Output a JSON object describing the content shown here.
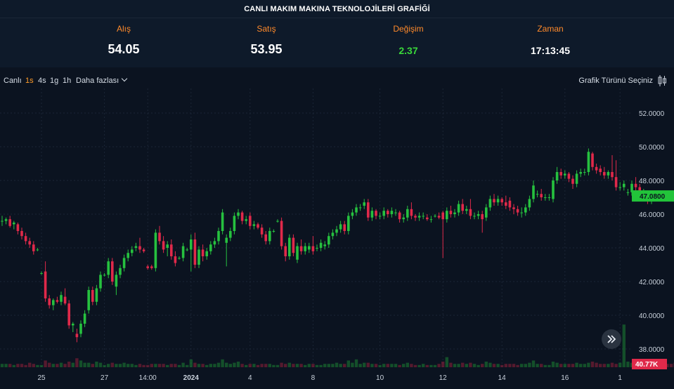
{
  "title": "CANLI MAKIM MAKINA TEKNOLOJİLERİ GRAFİĞİ",
  "stats": {
    "bid_label": "Alış",
    "bid_value": "54.05",
    "ask_label": "Satış",
    "ask_value": "53.95",
    "change_label": "Değişim",
    "change_value": "2.37",
    "time_label": "Zaman",
    "time_value": "17:13:45"
  },
  "toolbar": {
    "live": "Canlı",
    "tf_1s": "1s",
    "tf_4s": "4s",
    "tf_1g": "1g",
    "tf_1h": "1h",
    "more": "Daha fazlası",
    "chart_type": "Grafik Türünü Seçiniz"
  },
  "colors": {
    "up": "#26c13f",
    "down": "#e0294a",
    "accent": "#ff9c29",
    "bg": "#0b1320"
  },
  "chart_data": {
    "type": "candlestick",
    "title": "",
    "xlabel": "",
    "ylabel": "",
    "ylim": [
      37.0,
      53.0
    ],
    "y_ticks": [
      "52.0000",
      "50.0000",
      "48.0000",
      "46.0000",
      "44.0000",
      "42.0000",
      "40.0000",
      "38.0000"
    ],
    "x_tick_labels": [
      "25",
      "27",
      "14:00",
      "2024",
      "4",
      "8",
      "10",
      "12",
      "14",
      "16",
      "1"
    ],
    "x_tick_index": [
      10,
      26,
      37,
      48,
      63,
      79,
      96,
      112,
      127,
      143,
      157
    ],
    "last_price": "47.0800",
    "last_volume": "40.77K",
    "grid": true,
    "candles": [
      {
        "o": 45.6,
        "h": 45.9,
        "l": 45.3,
        "c": 45.6
      },
      {
        "o": 45.6,
        "h": 45.8,
        "l": 45.4,
        "c": 45.7
      },
      {
        "o": 45.7,
        "h": 45.9,
        "l": 45.2,
        "c": 45.3
      },
      {
        "o": 45.4,
        "h": 45.6,
        "l": 45.1,
        "c": 45.5
      },
      {
        "o": 45.4,
        "h": 45.5,
        "l": 44.8,
        "c": 45.0
      },
      {
        "o": 45.0,
        "h": 45.2,
        "l": 44.5,
        "c": 44.7
      },
      {
        "o": 44.7,
        "h": 44.9,
        "l": 44.2,
        "c": 44.4
      },
      {
        "o": 44.4,
        "h": 44.6,
        "l": 44.0,
        "c": 44.2
      },
      {
        "o": 44.2,
        "h": 44.4,
        "l": 43.6,
        "c": 43.8
      },
      {
        "o": 43.9,
        "h": 44.0,
        "l": 43.8,
        "c": 43.9
      },
      {
        "o": 42.5,
        "h": 42.6,
        "l": 42.4,
        "c": 42.5
      },
      {
        "o": 42.6,
        "h": 43.2,
        "l": 40.8,
        "c": 41.0
      },
      {
        "o": 41.0,
        "h": 41.2,
        "l": 40.4,
        "c": 40.6
      },
      {
        "o": 40.6,
        "h": 41.0,
        "l": 40.3,
        "c": 40.9
      },
      {
        "o": 40.9,
        "h": 41.1,
        "l": 40.7,
        "c": 40.8
      },
      {
        "o": 40.8,
        "h": 41.4,
        "l": 40.6,
        "c": 41.2
      },
      {
        "o": 41.1,
        "h": 41.6,
        "l": 40.6,
        "c": 40.7
      },
      {
        "o": 40.7,
        "h": 40.9,
        "l": 39.2,
        "c": 39.4
      },
      {
        "o": 39.4,
        "h": 39.6,
        "l": 39.0,
        "c": 39.5
      },
      {
        "o": 38.9,
        "h": 39.2,
        "l": 38.4,
        "c": 38.7
      },
      {
        "o": 38.9,
        "h": 39.7,
        "l": 38.7,
        "c": 39.5
      },
      {
        "o": 39.5,
        "h": 40.3,
        "l": 39.3,
        "c": 40.1
      },
      {
        "o": 40.3,
        "h": 41.7,
        "l": 40.1,
        "c": 41.5
      },
      {
        "o": 41.5,
        "h": 41.7,
        "l": 40.6,
        "c": 40.8
      },
      {
        "o": 40.8,
        "h": 41.8,
        "l": 40.6,
        "c": 41.6
      },
      {
        "o": 41.6,
        "h": 42.6,
        "l": 41.4,
        "c": 42.4
      },
      {
        "o": 42.4,
        "h": 42.5,
        "l": 42.3,
        "c": 42.4
      },
      {
        "o": 42.4,
        "h": 43.4,
        "l": 42.2,
        "c": 43.2
      },
      {
        "o": 43.2,
        "h": 43.4,
        "l": 41.8,
        "c": 42.0
      },
      {
        "o": 41.7,
        "h": 42.6,
        "l": 41.2,
        "c": 42.4
      },
      {
        "o": 42.4,
        "h": 43.0,
        "l": 42.2,
        "c": 42.8
      },
      {
        "o": 42.8,
        "h": 43.6,
        "l": 42.6,
        "c": 43.4
      },
      {
        "o": 43.4,
        "h": 43.9,
        "l": 43.2,
        "c": 43.7
      },
      {
        "o": 43.7,
        "h": 44.1,
        "l": 43.5,
        "c": 43.9
      },
      {
        "o": 44.0,
        "h": 44.3,
        "l": 43.8,
        "c": 44.1
      },
      {
        "o": 44.1,
        "h": 44.6,
        "l": 43.7,
        "c": 43.9
      },
      {
        "o": 43.9,
        "h": 44.0,
        "l": 43.7,
        "c": 43.8
      },
      {
        "o": 42.9,
        "h": 43.0,
        "l": 42.7,
        "c": 42.8
      },
      {
        "o": 42.9,
        "h": 43.0,
        "l": 42.7,
        "c": 42.8
      },
      {
        "o": 42.8,
        "h": 45.1,
        "l": 42.6,
        "c": 44.9
      },
      {
        "o": 44.9,
        "h": 45.3,
        "l": 44.2,
        "c": 44.4
      },
      {
        "o": 44.4,
        "h": 44.7,
        "l": 43.7,
        "c": 43.9
      },
      {
        "o": 44.0,
        "h": 44.4,
        "l": 43.5,
        "c": 44.2
      },
      {
        "o": 44.2,
        "h": 44.5,
        "l": 43.3,
        "c": 43.5
      },
      {
        "o": 43.5,
        "h": 43.8,
        "l": 42.9,
        "c": 43.1
      },
      {
        "o": 43.4,
        "h": 43.5,
        "l": 43.3,
        "c": 43.4
      },
      {
        "o": 43.4,
        "h": 44.3,
        "l": 43.2,
        "c": 44.1
      },
      {
        "o": 43.9,
        "h": 44.0,
        "l": 43.8,
        "c": 43.9
      },
      {
        "o": 43.9,
        "h": 44.8,
        "l": 42.6,
        "c": 44.5
      },
      {
        "o": 44.5,
        "h": 44.9,
        "l": 42.8,
        "c": 43.0
      },
      {
        "o": 43.0,
        "h": 44.1,
        "l": 42.8,
        "c": 43.9
      },
      {
        "o": 43.9,
        "h": 44.2,
        "l": 43.2,
        "c": 43.5
      },
      {
        "o": 43.5,
        "h": 44.0,
        "l": 43.3,
        "c": 43.8
      },
      {
        "o": 43.8,
        "h": 44.4,
        "l": 43.6,
        "c": 44.2
      },
      {
        "o": 44.2,
        "h": 44.6,
        "l": 44.0,
        "c": 44.4
      },
      {
        "o": 44.4,
        "h": 45.2,
        "l": 44.2,
        "c": 45.0
      },
      {
        "o": 45.0,
        "h": 46.3,
        "l": 44.8,
        "c": 46.1
      },
      {
        "o": 44.3,
        "h": 44.8,
        "l": 42.9,
        "c": 44.6
      },
      {
        "o": 44.6,
        "h": 45.2,
        "l": 44.4,
        "c": 45.0
      },
      {
        "o": 45.0,
        "h": 46.1,
        "l": 44.8,
        "c": 45.9
      },
      {
        "o": 45.9,
        "h": 46.3,
        "l": 45.7,
        "c": 46.1
      },
      {
        "o": 46.1,
        "h": 46.2,
        "l": 45.4,
        "c": 45.6
      },
      {
        "o": 45.6,
        "h": 45.9,
        "l": 45.4,
        "c": 45.7
      },
      {
        "o": 45.9,
        "h": 46.1,
        "l": 45.1,
        "c": 45.3
      },
      {
        "o": 45.3,
        "h": 45.6,
        "l": 45.1,
        "c": 45.4
      },
      {
        "o": 45.4,
        "h": 45.5,
        "l": 45.1,
        "c": 45.2
      },
      {
        "o": 45.2,
        "h": 45.4,
        "l": 44.6,
        "c": 44.8
      },
      {
        "o": 44.8,
        "h": 45.0,
        "l": 44.2,
        "c": 44.4
      },
      {
        "o": 44.4,
        "h": 45.2,
        "l": 44.2,
        "c": 45.0
      },
      {
        "o": 45.0,
        "h": 45.1,
        "l": 44.9,
        "c": 45.0
      },
      {
        "o": 45.6,
        "h": 45.7,
        "l": 45.5,
        "c": 45.6
      },
      {
        "o": 45.6,
        "h": 45.8,
        "l": 43.9,
        "c": 44.1
      },
      {
        "o": 44.1,
        "h": 44.3,
        "l": 43.2,
        "c": 43.5
      },
      {
        "o": 43.5,
        "h": 44.8,
        "l": 43.3,
        "c": 44.6
      },
      {
        "o": 44.6,
        "h": 44.8,
        "l": 43.5,
        "c": 43.7
      },
      {
        "o": 43.3,
        "h": 44.3,
        "l": 43.1,
        "c": 44.1
      },
      {
        "o": 44.1,
        "h": 44.5,
        "l": 43.6,
        "c": 43.8
      },
      {
        "o": 43.8,
        "h": 44.3,
        "l": 43.6,
        "c": 44.1
      },
      {
        "o": 43.9,
        "h": 44.3,
        "l": 43.7,
        "c": 44.1
      },
      {
        "o": 44.1,
        "h": 44.7,
        "l": 43.6,
        "c": 43.8
      },
      {
        "o": 44.0,
        "h": 44.2,
        "l": 43.8,
        "c": 44.0
      },
      {
        "o": 44.0,
        "h": 44.5,
        "l": 43.8,
        "c": 44.3
      },
      {
        "o": 44.1,
        "h": 44.4,
        "l": 43.9,
        "c": 44.2
      },
      {
        "o": 44.2,
        "h": 44.9,
        "l": 44.0,
        "c": 44.7
      },
      {
        "o": 44.7,
        "h": 45.1,
        "l": 44.5,
        "c": 44.9
      },
      {
        "o": 44.9,
        "h": 45.3,
        "l": 44.7,
        "c": 45.1
      },
      {
        "o": 45.1,
        "h": 45.6,
        "l": 44.9,
        "c": 45.4
      },
      {
        "o": 45.4,
        "h": 45.6,
        "l": 44.8,
        "c": 45.0
      },
      {
        "o": 45.0,
        "h": 46.1,
        "l": 44.8,
        "c": 45.9
      },
      {
        "o": 45.9,
        "h": 46.3,
        "l": 45.7,
        "c": 46.1
      },
      {
        "o": 46.1,
        "h": 46.6,
        "l": 45.9,
        "c": 46.4
      },
      {
        "o": 46.4,
        "h": 46.6,
        "l": 46.2,
        "c": 46.4
      },
      {
        "o": 46.5,
        "h": 46.9,
        "l": 46.3,
        "c": 46.7
      },
      {
        "o": 46.7,
        "h": 46.9,
        "l": 45.6,
        "c": 45.8
      },
      {
        "o": 45.8,
        "h": 46.4,
        "l": 45.6,
        "c": 46.2
      },
      {
        "o": 46.2,
        "h": 46.3,
        "l": 45.7,
        "c": 45.9
      },
      {
        "o": 45.9,
        "h": 46.1,
        "l": 45.7,
        "c": 45.9
      },
      {
        "o": 45.9,
        "h": 46.4,
        "l": 45.7,
        "c": 46.2
      },
      {
        "o": 46.2,
        "h": 46.3,
        "l": 45.8,
        "c": 46.0
      },
      {
        "o": 46.0,
        "h": 46.4,
        "l": 45.8,
        "c": 46.2
      },
      {
        "o": 46.1,
        "h": 46.3,
        "l": 45.9,
        "c": 46.1
      },
      {
        "o": 46.1,
        "h": 46.2,
        "l": 45.5,
        "c": 45.7
      },
      {
        "o": 45.7,
        "h": 46.0,
        "l": 45.5,
        "c": 45.8
      },
      {
        "o": 45.8,
        "h": 46.5,
        "l": 45.6,
        "c": 46.3
      },
      {
        "o": 46.3,
        "h": 46.7,
        "l": 45.7,
        "c": 45.9
      },
      {
        "o": 45.9,
        "h": 46.0,
        "l": 45.6,
        "c": 45.8
      },
      {
        "o": 45.8,
        "h": 46.1,
        "l": 45.6,
        "c": 45.9
      },
      {
        "o": 45.9,
        "h": 46.1,
        "l": 45.7,
        "c": 45.9
      },
      {
        "o": 45.8,
        "h": 46.0,
        "l": 45.6,
        "c": 45.7
      },
      {
        "o": 45.7,
        "h": 45.9,
        "l": 45.5,
        "c": 45.7
      },
      {
        "o": 45.9,
        "h": 46.0,
        "l": 45.8,
        "c": 45.9
      },
      {
        "o": 45.9,
        "h": 46.1,
        "l": 45.7,
        "c": 45.8
      },
      {
        "o": 46.1,
        "h": 46.2,
        "l": 43.4,
        "c": 45.7
      },
      {
        "o": 45.7,
        "h": 46.4,
        "l": 45.5,
        "c": 46.2
      },
      {
        "o": 46.2,
        "h": 46.5,
        "l": 45.8,
        "c": 46.0
      },
      {
        "o": 46.0,
        "h": 46.3,
        "l": 45.8,
        "c": 46.1
      },
      {
        "o": 46.1,
        "h": 46.8,
        "l": 45.9,
        "c": 46.6
      },
      {
        "o": 46.6,
        "h": 46.9,
        "l": 46.0,
        "c": 46.2
      },
      {
        "o": 46.2,
        "h": 46.5,
        "l": 46.0,
        "c": 46.3
      },
      {
        "o": 46.3,
        "h": 46.9,
        "l": 45.7,
        "c": 45.9
      },
      {
        "o": 45.9,
        "h": 46.1,
        "l": 45.7,
        "c": 45.9
      },
      {
        "o": 45.9,
        "h": 46.2,
        "l": 45.7,
        "c": 46.0
      },
      {
        "o": 46.0,
        "h": 46.2,
        "l": 44.9,
        "c": 45.7
      },
      {
        "o": 45.8,
        "h": 46.6,
        "l": 45.6,
        "c": 46.4
      },
      {
        "o": 46.4,
        "h": 47.1,
        "l": 46.2,
        "c": 46.9
      },
      {
        "o": 46.9,
        "h": 47.2,
        "l": 46.5,
        "c": 46.7
      },
      {
        "o": 46.7,
        "h": 47.1,
        "l": 46.5,
        "c": 46.9
      },
      {
        "o": 46.9,
        "h": 47.0,
        "l": 46.5,
        "c": 46.7
      },
      {
        "o": 46.7,
        "h": 47.1,
        "l": 46.3,
        "c": 46.5
      },
      {
        "o": 46.8,
        "h": 47.0,
        "l": 46.2,
        "c": 46.4
      },
      {
        "o": 46.4,
        "h": 46.6,
        "l": 46.0,
        "c": 46.3
      },
      {
        "o": 46.3,
        "h": 46.5,
        "l": 45.9,
        "c": 46.1
      },
      {
        "o": 46.1,
        "h": 46.4,
        "l": 45.8,
        "c": 46.1
      },
      {
        "o": 46.1,
        "h": 46.6,
        "l": 45.9,
        "c": 46.4
      },
      {
        "o": 46.4,
        "h": 47.1,
        "l": 46.2,
        "c": 46.9
      },
      {
        "o": 46.9,
        "h": 48.0,
        "l": 46.7,
        "c": 47.7
      },
      {
        "o": 47.2,
        "h": 47.4,
        "l": 47.0,
        "c": 47.2
      },
      {
        "o": 47.2,
        "h": 47.5,
        "l": 46.8,
        "c": 47.0
      },
      {
        "o": 47.0,
        "h": 47.2,
        "l": 46.8,
        "c": 47.0
      },
      {
        "o": 47.0,
        "h": 47.2,
        "l": 46.8,
        "c": 47.0
      },
      {
        "o": 46.9,
        "h": 48.2,
        "l": 46.7,
        "c": 48.0
      },
      {
        "o": 48.0,
        "h": 48.8,
        "l": 47.8,
        "c": 48.5
      },
      {
        "o": 48.5,
        "h": 48.7,
        "l": 48.1,
        "c": 48.3
      },
      {
        "o": 48.3,
        "h": 48.6,
        "l": 48.1,
        "c": 48.4
      },
      {
        "o": 48.4,
        "h": 48.5,
        "l": 47.9,
        "c": 48.1
      },
      {
        "o": 48.1,
        "h": 48.3,
        "l": 47.5,
        "c": 47.8
      },
      {
        "o": 47.8,
        "h": 48.6,
        "l": 47.6,
        "c": 48.4
      },
      {
        "o": 48.4,
        "h": 48.7,
        "l": 48.2,
        "c": 48.5
      },
      {
        "o": 48.5,
        "h": 48.7,
        "l": 48.3,
        "c": 48.5
      },
      {
        "o": 48.5,
        "h": 49.9,
        "l": 48.3,
        "c": 49.7
      },
      {
        "o": 49.6,
        "h": 49.7,
        "l": 48.6,
        "c": 48.8
      },
      {
        "o": 48.8,
        "h": 49.0,
        "l": 48.4,
        "c": 48.6
      },
      {
        "o": 48.7,
        "h": 48.9,
        "l": 48.3,
        "c": 48.5
      },
      {
        "o": 48.5,
        "h": 48.8,
        "l": 48.1,
        "c": 48.3
      },
      {
        "o": 48.3,
        "h": 48.6,
        "l": 48.1,
        "c": 48.5
      },
      {
        "o": 48.5,
        "h": 49.5,
        "l": 48.0,
        "c": 48.2
      },
      {
        "o": 48.2,
        "h": 49.2,
        "l": 47.4,
        "c": 47.6
      },
      {
        "o": 47.6,
        "h": 47.9,
        "l": 47.4,
        "c": 47.6
      },
      {
        "o": 47.6,
        "h": 48.0,
        "l": 47.4,
        "c": 47.8
      },
      {
        "o": 47.3,
        "h": 47.5,
        "l": 47.1,
        "c": 47.3
      },
      {
        "o": 47.3,
        "h": 48.0,
        "l": 47.1,
        "c": 47.8
      },
      {
        "o": 47.8,
        "h": 48.2,
        "l": 47.4,
        "c": 47.6
      },
      {
        "o": 47.6,
        "h": 47.8,
        "l": 47.1,
        "c": 47.3
      },
      {
        "o": 47.3,
        "h": 47.5,
        "l": 47.1,
        "c": 47.3
      },
      {
        "o": 47.3,
        "h": 47.4,
        "l": 46.6,
        "c": 46.8
      },
      {
        "o": 46.8,
        "h": 47.2,
        "l": 46.6,
        "c": 47.1
      }
    ],
    "volume": [
      0.03,
      0.03,
      0.03,
      0.02,
      0.03,
      0.03,
      0.02,
      0.04,
      0.03,
      0.02,
      0.02,
      0.06,
      0.04,
      0.03,
      0.03,
      0.04,
      0.03,
      0.05,
      0.04,
      0.08,
      0.06,
      0.04,
      0.04,
      0.03,
      0.05,
      0.04,
      0.02,
      0.03,
      0.04,
      0.03,
      0.03,
      0.04,
      0.03,
      0.03,
      0.02,
      0.03,
      0.02,
      0.02,
      0.03,
      0.03,
      0.03,
      0.03,
      0.02,
      0.03,
      0.03,
      0.02,
      0.04,
      0.02,
      0.07,
      0.04,
      0.03,
      0.03,
      0.02,
      0.03,
      0.03,
      0.04,
      0.07,
      0.04,
      0.03,
      0.04,
      0.05,
      0.03,
      0.02,
      0.03,
      0.03,
      0.02,
      0.03,
      0.03,
      0.03,
      0.02,
      0.02,
      0.04,
      0.03,
      0.04,
      0.03,
      0.03,
      0.03,
      0.02,
      0.03,
      0.03,
      0.02,
      0.02,
      0.03,
      0.03,
      0.03,
      0.04,
      0.03,
      0.03,
      0.06,
      0.04,
      0.07,
      0.03,
      0.04,
      0.04,
      0.03,
      0.03,
      0.02,
      0.03,
      0.03,
      0.03,
      0.03,
      0.02,
      0.03,
      0.04,
      0.03,
      0.02,
      0.02,
      0.03,
      0.02,
      0.02,
      0.02,
      0.03,
      0.05,
      0.09,
      0.04,
      0.03,
      0.03,
      0.04,
      0.03,
      0.04,
      0.03,
      0.02,
      0.03,
      0.05,
      0.04,
      0.03,
      0.03,
      0.02,
      0.03,
      0.03,
      0.03,
      0.02,
      0.03,
      0.03,
      0.04,
      0.06,
      0.03,
      0.03,
      0.02,
      0.02,
      0.05,
      0.04,
      0.03,
      0.03,
      0.03,
      0.03,
      0.04,
      0.03,
      0.03,
      0.04,
      0.05,
      0.04,
      0.03,
      0.03,
      0.03,
      0.04,
      0.03,
      0.04,
      0.38,
      0.05,
      0.04,
      0.03,
      0.03,
      0.03,
      0.04,
      0.03,
      0.04,
      0.03,
      0.04,
      0.03,
      0.03,
      0.04,
      0.04
    ]
  }
}
